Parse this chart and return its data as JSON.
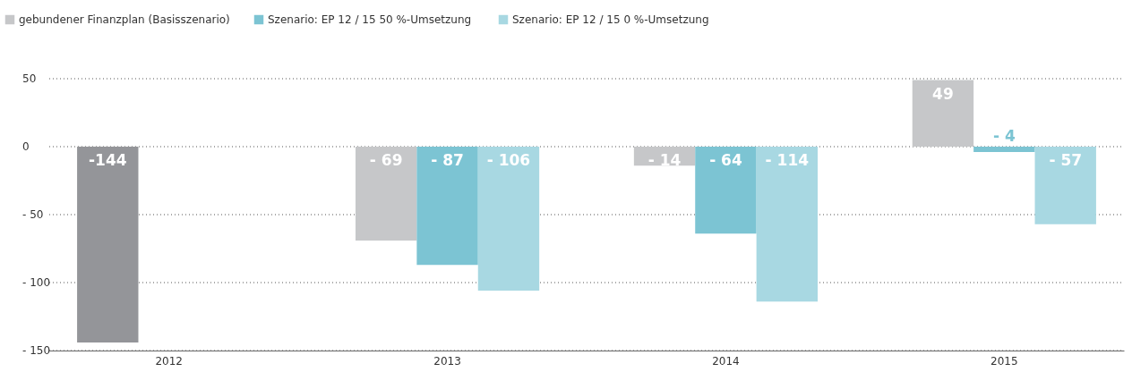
{
  "chart_data": {
    "type": "bar",
    "categories": [
      "2012",
      "2013",
      "2014",
      "2015"
    ],
    "series": [
      {
        "name": "gebundener Finanzplan (Basisszenario)",
        "color": "#c6c7c9",
        "colors": [
          "#949599",
          "#c6c7c9",
          "#c6c7c9",
          "#c6c7c9"
        ],
        "values": [
          -144,
          -69,
          -14,
          49
        ],
        "value_labels": [
          "-144",
          "- 69",
          "- 14",
          "49"
        ]
      },
      {
        "name": "Szenario: EP 12 / 15  50 %-Umsetzung",
        "color": "#7cc4d3",
        "values": [
          null,
          -87,
          -64,
          -4
        ],
        "value_labels": [
          null,
          "- 87",
          "- 64",
          "- 4"
        ]
      },
      {
        "name": "Szenario: EP 12 / 15  0 %-Umsetzung",
        "color": "#a8d8e2",
        "values": [
          null,
          -106,
          -114,
          -57
        ],
        "value_labels": [
          null,
          "- 106",
          "- 114",
          "- 57"
        ]
      }
    ],
    "ylim": [
      -150,
      50
    ],
    "yticks": [
      50,
      0,
      {
        "value": -50,
        "label": "- 50"
      },
      {
        "value": -100,
        "label": "- 100"
      },
      {
        "value": -150,
        "label": "- 150"
      }
    ],
    "grid": "y",
    "legend": "top left"
  }
}
